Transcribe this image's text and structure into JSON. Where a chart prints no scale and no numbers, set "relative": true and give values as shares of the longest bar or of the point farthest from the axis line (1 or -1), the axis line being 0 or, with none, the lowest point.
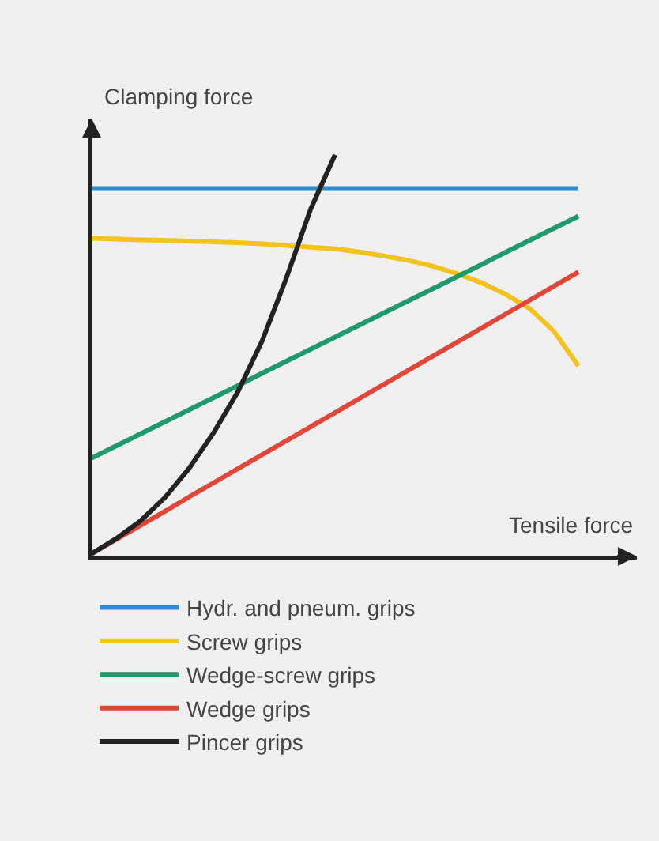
{
  "chart_data": {
    "type": "line",
    "relative": true,
    "xlabel": "Tensile force",
    "ylabel": "Clamping force",
    "legend": "bottom",
    "marker": "none",
    "grid": false,
    "categories": [
      null,
      null,
      null,
      null,
      null,
      null,
      null,
      null,
      null,
      null,
      null,
      null,
      null,
      null,
      null,
      null,
      null,
      null,
      null,
      null,
      null
    ],
    "series": [
      {
        "name": "Hydr. and pneum. grips",
        "color": "#2a8fd0",
        "values": [
          0.916,
          0.916,
          0.916,
          0.916,
          0.916,
          0.916,
          0.916,
          0.916,
          0.916,
          0.916,
          0.916,
          0.916,
          0.916,
          0.916,
          0.916,
          0.916,
          0.916,
          0.916,
          0.916,
          0.916,
          0.916
        ]
      },
      {
        "name": "Screw grips",
        "color": "#f2c31c",
        "values": [
          0.792,
          0.79,
          0.788,
          0.787,
          0.785,
          0.783,
          0.781,
          0.778,
          0.774,
          0.77,
          0.766,
          0.758,
          0.748,
          0.737,
          0.723,
          0.704,
          0.682,
          0.653,
          0.617,
          0.56,
          0.474
        ]
      },
      {
        "name": "Wedge-screw grips",
        "color": "#1f9a6a",
        "values": [
          0.245,
          0.275,
          0.305,
          0.335,
          0.365,
          0.395,
          0.425,
          0.456,
          0.486,
          0.516,
          0.546,
          0.576,
          0.606,
          0.636,
          0.666,
          0.696,
          0.726,
          0.757,
          0.787,
          0.817,
          0.847
        ]
      },
      {
        "name": "Wedge grips",
        "color": "#e0473a",
        "values": [
          0.007,
          0.042,
          0.077,
          0.112,
          0.148,
          0.183,
          0.218,
          0.253,
          0.288,
          0.323,
          0.358,
          0.393,
          0.428,
          0.463,
          0.498,
          0.533,
          0.568,
          0.603,
          0.638,
          0.673,
          0.708
        ]
      },
      {
        "name": "Pincer grips",
        "color": "#222222",
        "values": [
          0.007,
          0.044,
          0.088,
          0.146,
          0.219,
          0.307,
          0.409,
          0.536,
          0.693,
          0.865,
          1.0,
          null,
          null,
          null,
          null,
          null,
          null,
          null,
          null,
          null,
          null
        ]
      }
    ]
  }
}
